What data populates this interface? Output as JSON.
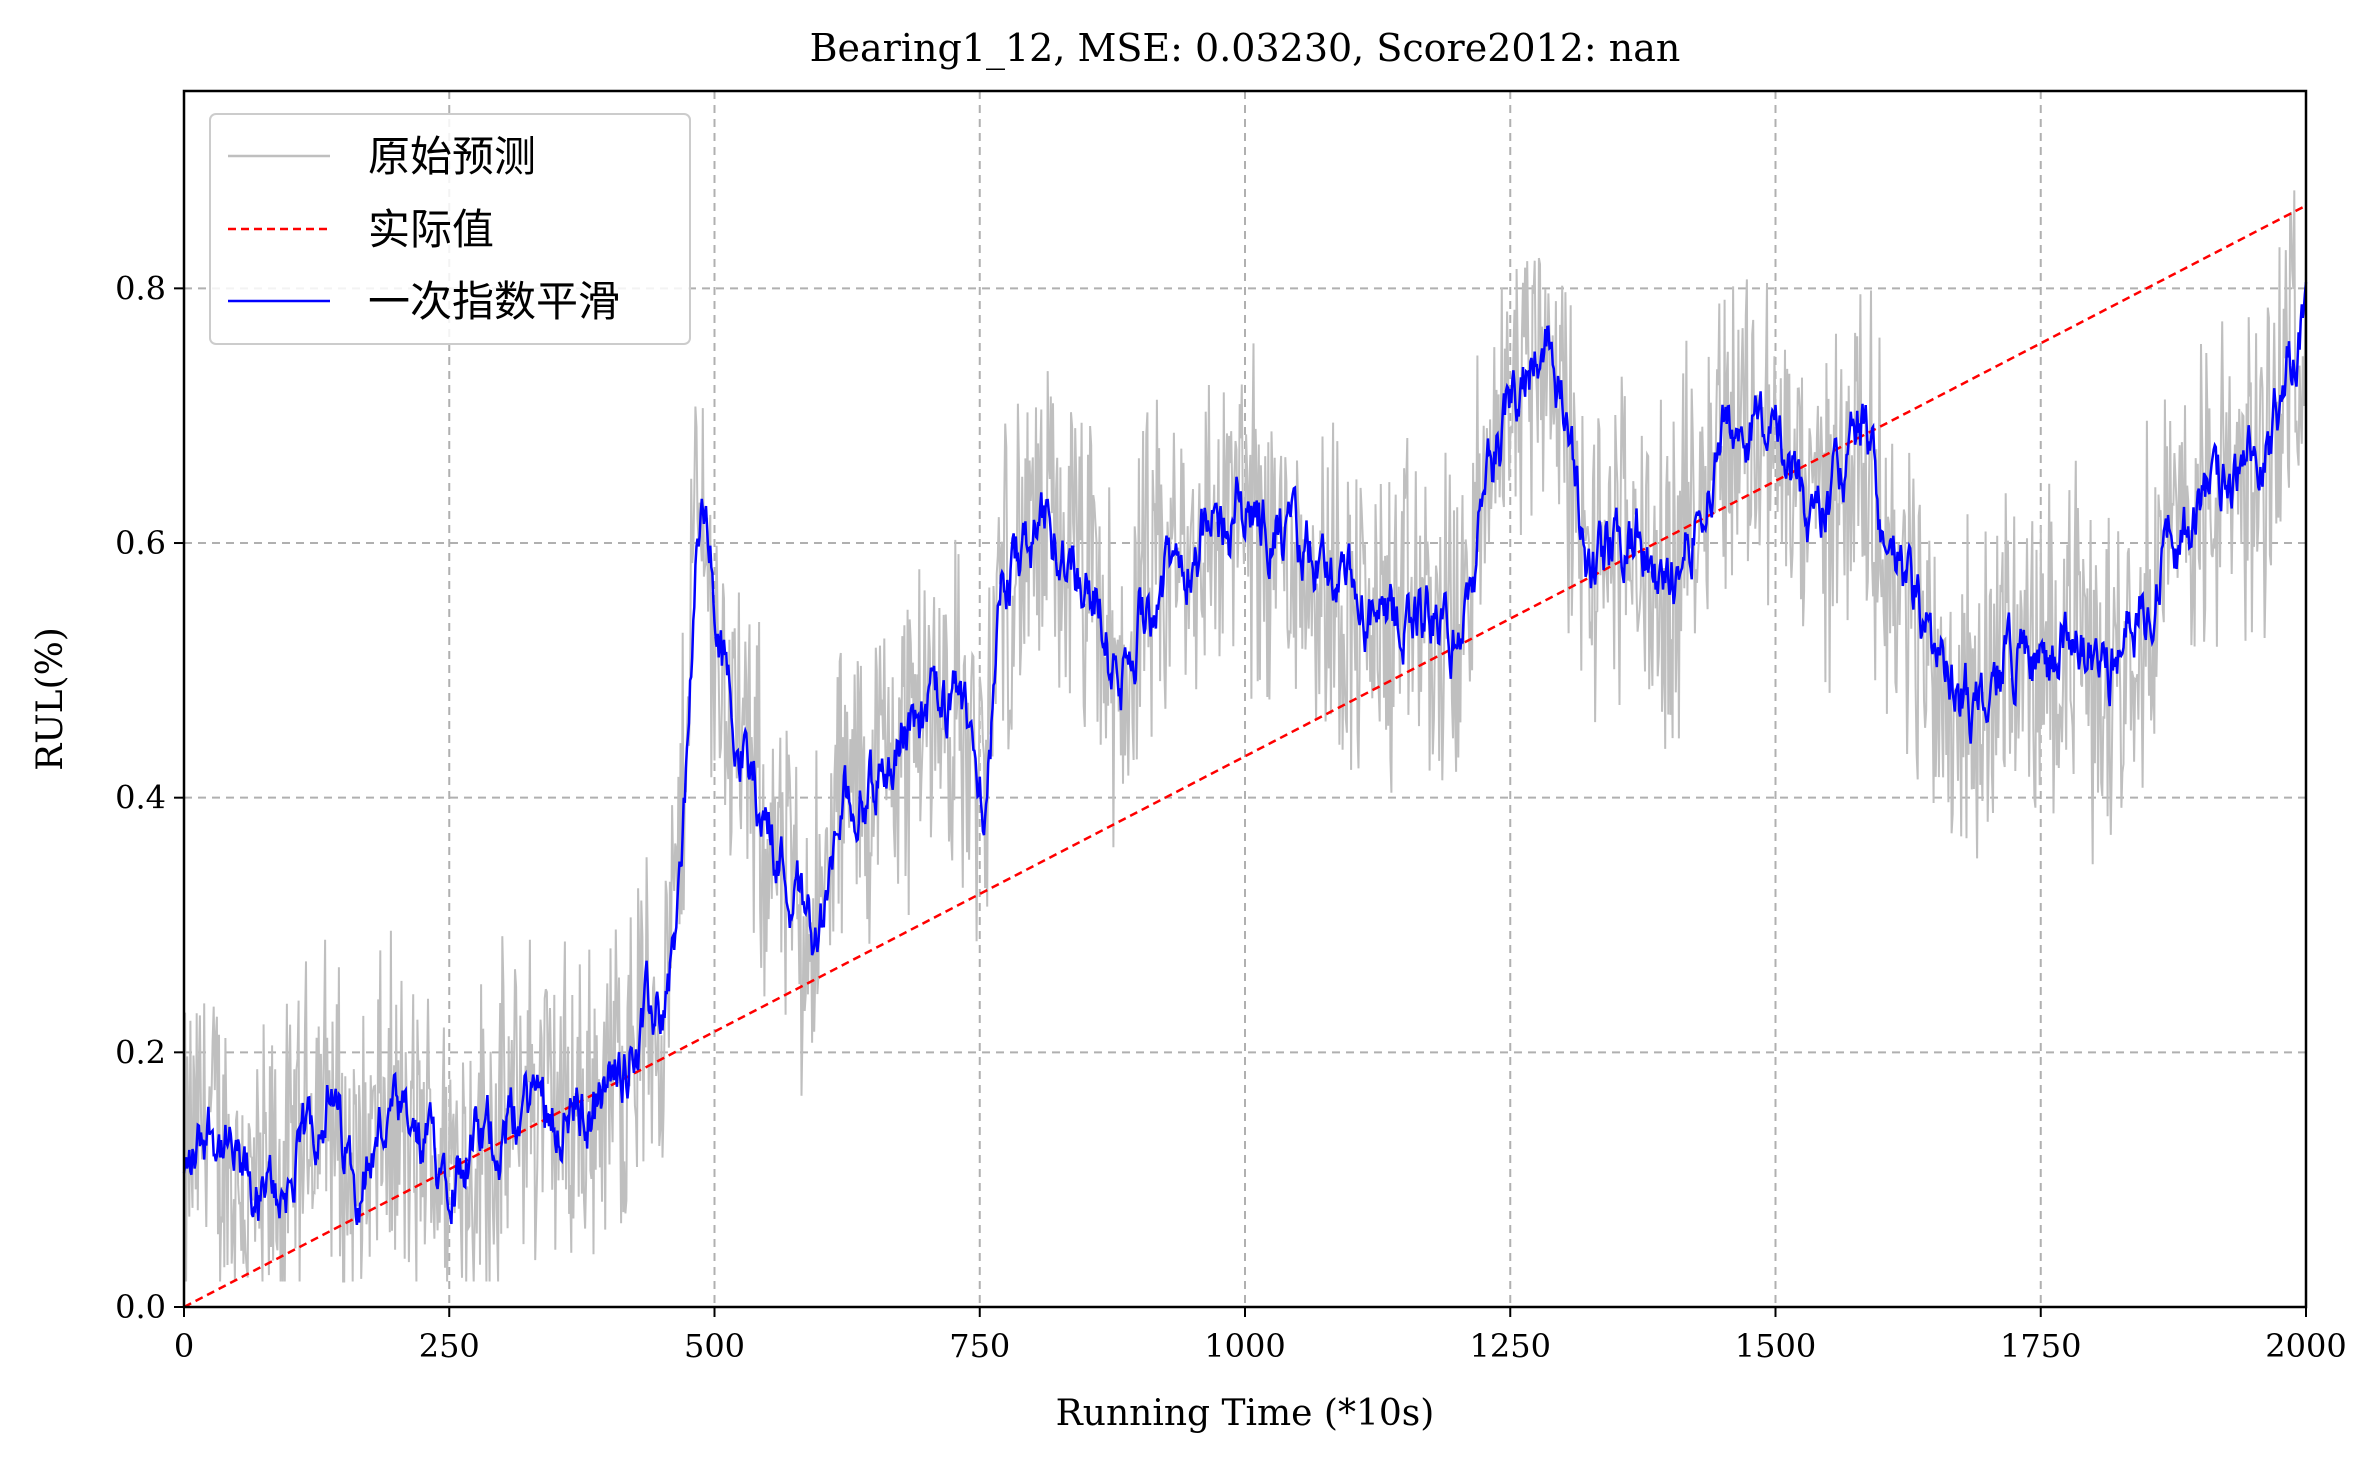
{
  "chart_data": {
    "type": "line",
    "title": "Bearing1_12, MSE: 0.03230, Score2012: nan",
    "xlabel": "Running Time (*10s)",
    "ylabel": "RUL(%)",
    "xlim": [
      0,
      2000
    ],
    "ylim": [
      0,
      0.955
    ],
    "xticks": [
      0,
      250,
      500,
      750,
      1000,
      1250,
      1500,
      1750,
      2000
    ],
    "xtick_labels": [
      "0",
      "250",
      "500",
      "750",
      "1000",
      "1250",
      "1500",
      "1750",
      "2000"
    ],
    "yticks": [
      0.0,
      0.2,
      0.4,
      0.6,
      0.8
    ],
    "ytick_labels": [
      "0.0",
      "0.2",
      "0.4",
      "0.6",
      "0.8"
    ],
    "grid": true,
    "legend_position": "top-left",
    "series": [
      {
        "name": "原始预测",
        "color": "#bfbfbf",
        "style": "solid",
        "noise_amplitude": 0.11,
        "x": [
          0,
          20,
          50,
          70,
          100,
          130,
          160,
          190,
          220,
          260,
          300,
          330,
          360,
          390,
          420,
          450,
          465,
          480,
          490,
          500,
          530,
          560,
          590,
          600,
          620,
          650,
          680,
          700,
          720,
          740,
          755,
          770,
          800,
          830,
          860,
          880,
          900,
          950,
          1000,
          1040,
          1070,
          1100,
          1130,
          1160,
          1200,
          1230,
          1260,
          1280,
          1300,
          1320,
          1340,
          1370,
          1390,
          1420,
          1450,
          1490,
          1500,
          1530,
          1560,
          1580,
          1600,
          1630,
          1660,
          1690,
          1720,
          1750,
          1780,
          1810,
          1840,
          1870,
          1900,
          1930,
          1960,
          1980,
          2000
        ],
        "y": [
          0.1,
          0.15,
          0.1,
          0.08,
          0.1,
          0.17,
          0.1,
          0.15,
          0.12,
          0.12,
          0.14,
          0.17,
          0.15,
          0.16,
          0.21,
          0.24,
          0.32,
          0.6,
          0.63,
          0.52,
          0.42,
          0.35,
          0.3,
          0.3,
          0.4,
          0.41,
          0.46,
          0.47,
          0.47,
          0.45,
          0.4,
          0.58,
          0.6,
          0.6,
          0.55,
          0.47,
          0.55,
          0.6,
          0.63,
          0.6,
          0.58,
          0.55,
          0.53,
          0.55,
          0.52,
          0.66,
          0.74,
          0.77,
          0.7,
          0.57,
          0.6,
          0.6,
          0.55,
          0.62,
          0.69,
          0.7,
          0.67,
          0.62,
          0.65,
          0.7,
          0.6,
          0.55,
          0.48,
          0.47,
          0.52,
          0.5,
          0.53,
          0.49,
          0.55,
          0.6,
          0.63,
          0.65,
          0.66,
          0.75,
          0.78
        ]
      },
      {
        "name": "实际值",
        "color": "#ff0000",
        "style": "dashed",
        "x": [
          0,
          2000
        ],
        "y": [
          0.0,
          0.865
        ]
      },
      {
        "name": "一次指数平滑",
        "color": "#0000ff",
        "style": "solid",
        "noise_amplitude": 0.035,
        "x": [
          0,
          20,
          50,
          70,
          100,
          130,
          160,
          190,
          220,
          260,
          300,
          330,
          360,
          390,
          420,
          450,
          465,
          480,
          490,
          500,
          530,
          560,
          590,
          600,
          620,
          650,
          680,
          700,
          720,
          740,
          755,
          770,
          800,
          830,
          860,
          880,
          900,
          950,
          1000,
          1040,
          1070,
          1100,
          1130,
          1160,
          1200,
          1230,
          1260,
          1280,
          1300,
          1320,
          1340,
          1370,
          1390,
          1420,
          1450,
          1490,
          1500,
          1530,
          1560,
          1580,
          1600,
          1630,
          1660,
          1690,
          1720,
          1750,
          1780,
          1810,
          1840,
          1870,
          1900,
          1930,
          1960,
          1980,
          2000
        ],
        "y": [
          0.1,
          0.15,
          0.1,
          0.08,
          0.1,
          0.17,
          0.1,
          0.15,
          0.12,
          0.12,
          0.14,
          0.17,
          0.15,
          0.16,
          0.21,
          0.24,
          0.32,
          0.6,
          0.63,
          0.52,
          0.42,
          0.35,
          0.3,
          0.3,
          0.4,
          0.41,
          0.46,
          0.47,
          0.47,
          0.45,
          0.4,
          0.58,
          0.6,
          0.6,
          0.55,
          0.47,
          0.55,
          0.6,
          0.63,
          0.6,
          0.58,
          0.55,
          0.53,
          0.55,
          0.52,
          0.66,
          0.74,
          0.77,
          0.7,
          0.57,
          0.6,
          0.6,
          0.55,
          0.62,
          0.69,
          0.7,
          0.67,
          0.62,
          0.65,
          0.7,
          0.6,
          0.55,
          0.48,
          0.47,
          0.52,
          0.5,
          0.53,
          0.49,
          0.55,
          0.6,
          0.63,
          0.65,
          0.66,
          0.75,
          0.78
        ]
      }
    ]
  }
}
